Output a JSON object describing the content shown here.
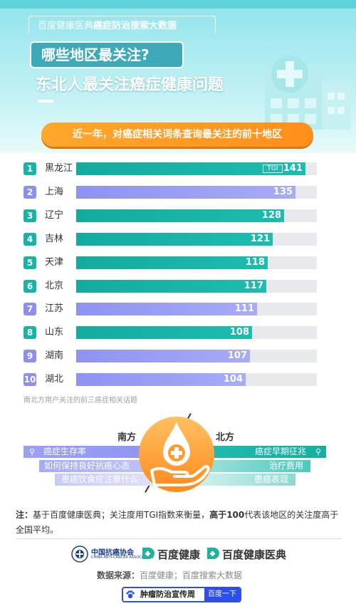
{
  "header": {
    "supertitle_part1": "百度健康医典",
    "supertitle_part2": "癌症防治搜索大数据",
    "question": "哪些地区最关注?",
    "title": "东北人最关注癌症健康问题"
  },
  "banner": "近一年，对癌症相关词条查询最关注的前十地区",
  "chart_data": {
    "type": "bar",
    "orientation": "horizontal",
    "title": "近一年，对癌症相关词条查询最关注的前十地区",
    "ranks": [
      "1",
      "2",
      "3",
      "4",
      "5",
      "6",
      "7",
      "8",
      "9",
      "10"
    ],
    "categories": [
      "黑龙江",
      "上海",
      "辽宁",
      "吉林",
      "天津",
      "北京",
      "江苏",
      "山东",
      "湖南",
      "湖北"
    ],
    "values": [
      141,
      135,
      128,
      121,
      118,
      117,
      111,
      108,
      107,
      104
    ],
    "value_label": "TGI",
    "region_group": [
      "north",
      "south",
      "north",
      "north",
      "north",
      "north",
      "south",
      "north",
      "south",
      "south"
    ],
    "colors": {
      "north": "#18b3a7",
      "south": "#8b8ff0",
      "track": "#e8e9ec"
    },
    "xlim": [
      0,
      148
    ]
  },
  "chart_note": "南北方用户关注的前三癌症相关话题",
  "south_north": {
    "south_label": "南方",
    "north_label": "北方",
    "south_topics": [
      "癌症生存率",
      "如何保持良好抗癌心态",
      "患癌饮食应注意什么"
    ],
    "north_topics": [
      "癌症早期征兆",
      "治疗费用",
      "患癌表现"
    ]
  },
  "note": {
    "prefix": "注：",
    "part1": "基于百度健康医典；关注度用TGI指数来衡量，",
    "bold": "高于100",
    "part2": "代表该地区的关注度高于全国平均。"
  },
  "logos": {
    "cn_assoc": "中国抗癌协会",
    "cn_assoc_en": "CHINA ANTI-CANCER ASSOCIATION",
    "baidu_health": "百度健康",
    "baidu_health_dict": "百度健康医典"
  },
  "source": {
    "label": "数据来源：",
    "text": "百度健康；百度搜索大数据"
  },
  "search": {
    "query": "肿瘤防治宣传周",
    "button": "百度一下"
  }
}
